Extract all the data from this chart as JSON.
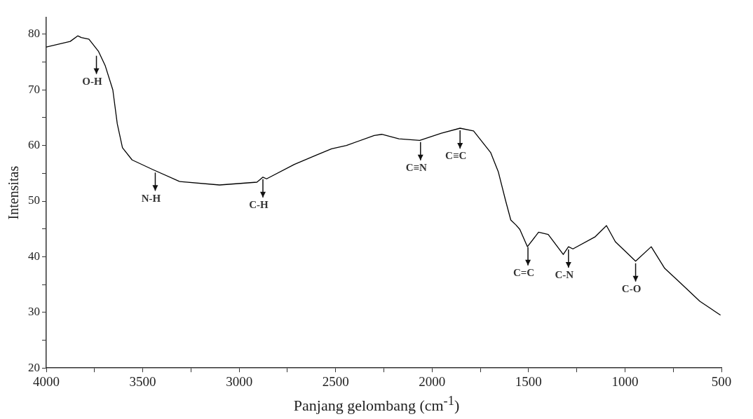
{
  "chart_data": {
    "type": "line",
    "xlabel": "Panjang gelombang (cm$^{-1}$)",
    "ylabel": "Intensitas",
    "xlim": [
      4000,
      500
    ],
    "ylim": [
      20,
      83
    ],
    "xticks": [
      4000,
      {
        "value": 3750,
        "label": null
      },
      3500,
      {
        "value": 3250,
        "label": null
      },
      3000,
      {
        "value": 2750,
        "label": null
      },
      2500,
      {
        "value": 2250,
        "label": null
      },
      2000,
      {
        "value": 1750,
        "label": null
      },
      1500,
      {
        "value": 1250,
        "label": null
      },
      1000,
      {
        "value": 750,
        "label": null
      },
      500
    ],
    "yticks": [
      20,
      {
        "value": 25,
        "label": null
      },
      30,
      {
        "value": 35,
        "label": null
      },
      40,
      {
        "value": 45,
        "label": null
      },
      50,
      {
        "value": 55,
        "label": null
      },
      60,
      {
        "value": 65,
        "label": null
      },
      70,
      {
        "value": 75,
        "label": null
      },
      80
    ],
    "grid": false,
    "legend": false,
    "marker": "none",
    "line_style": "solid",
    "series": [
      {
        "color": "#000000",
        "x": [
          4000,
          3876,
          3837,
          3818,
          3779,
          3729,
          3694,
          3655,
          3632,
          3605,
          3555,
          3450,
          3307,
          3102,
          2908,
          2877,
          2858,
          2714,
          2598,
          2521,
          2444,
          2300,
          2261,
          2172,
          2064,
          1952,
          1855,
          1785,
          1696,
          1657,
          1619,
          1592,
          1565,
          1545,
          1506,
          1448,
          1398,
          1320,
          1293,
          1270,
          1154,
          1096,
          1050,
          945,
          864,
          794,
          713,
          612,
          505
        ],
        "values": [
          77.7,
          78.7,
          79.7,
          79.4,
          79.1,
          76.9,
          74.3,
          70.0,
          63.9,
          59.6,
          57.4,
          55.7,
          53.5,
          52.9,
          53.4,
          54.3,
          54.0,
          56.6,
          58.3,
          59.4,
          60.0,
          61.8,
          62.0,
          61.2,
          60.9,
          62.2,
          63.1,
          62.6,
          58.7,
          55.3,
          50.1,
          46.6,
          45.7,
          44.9,
          41.8,
          44.4,
          44.0,
          40.4,
          41.8,
          41.4,
          43.6,
          45.6,
          42.7,
          39.2,
          41.8,
          37.9,
          35.3,
          32.0,
          29.5
        ]
      }
    ],
    "annotations": [
      {
        "text": "O-H",
        "x": 3740,
        "y": 76.5
      },
      {
        "text": "N-H",
        "x": 3435,
        "y": 55.5
      },
      {
        "text": "C-H",
        "x": 2877,
        "y": 54.3
      },
      {
        "text": "C≡N",
        "x": 2060,
        "y": 61.0
      },
      {
        "text": "C≡C",
        "x": 1855,
        "y": 63.1
      },
      {
        "text": "C=C",
        "x": 1503,
        "y": 42.1
      },
      {
        "text": "C-N",
        "x": 1293,
        "y": 41.7
      },
      {
        "text": "C-O",
        "x": 945,
        "y": 39.2
      }
    ]
  }
}
